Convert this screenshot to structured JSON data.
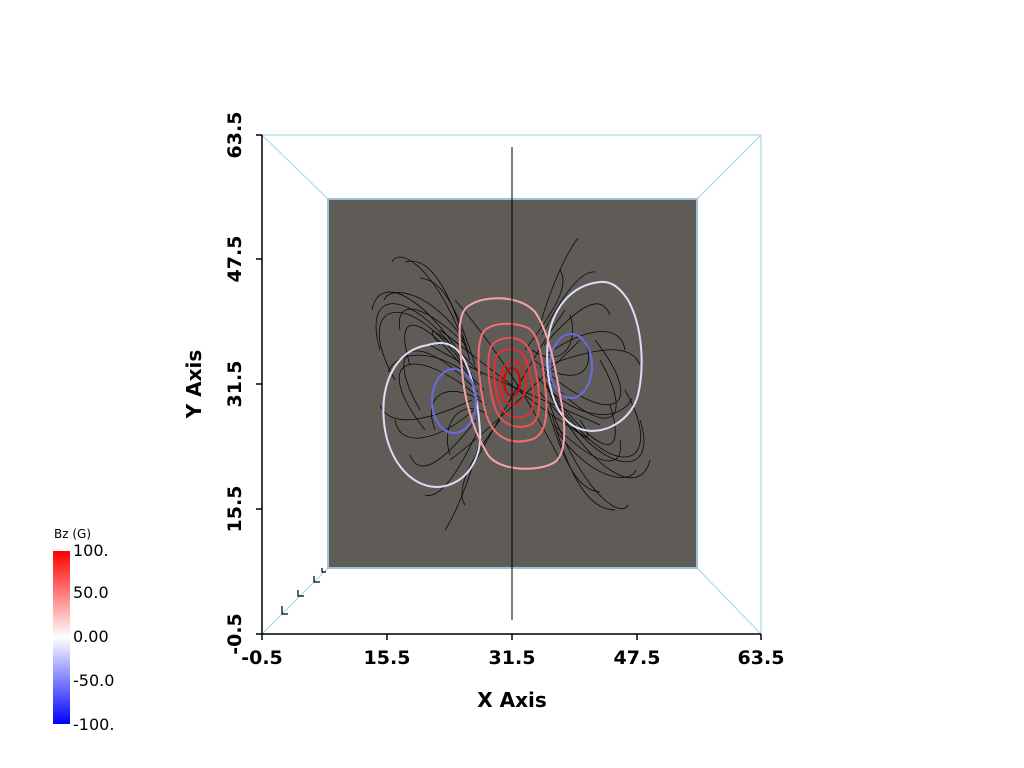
{
  "axes": {
    "x_title": "X Axis",
    "y_title": "Y Axis",
    "x_ticks": [
      "-0.5",
      "15.5",
      "31.5",
      "47.5",
      "63.5"
    ],
    "y_ticks": [
      "-0.5",
      "15.5",
      "31.5",
      "47.5",
      "63.5"
    ]
  },
  "colorbar": {
    "title": "Bz (G)",
    "labels": [
      "100.",
      "50.0",
      "0.00",
      "-50.0",
      "-100."
    ],
    "colors": {
      "max": "#ff0000",
      "mid": "#ffffff",
      "min": "#0000ff"
    }
  },
  "scene": {
    "slice_color": "#5f5c58",
    "box_color": "#add8e6",
    "fieldline_color": "#000000",
    "contours": [
      {
        "value": 100,
        "color": "#e00000"
      },
      {
        "value": 80,
        "color": "#e83030"
      },
      {
        "value": 60,
        "color": "#ee5050"
      },
      {
        "value": 40,
        "color": "#f07070"
      },
      {
        "value": 20,
        "color": "#f5a5a5"
      },
      {
        "value": -20,
        "color": "#dcdcf5"
      },
      {
        "value": -40,
        "color": "#6a6ae0"
      }
    ]
  }
}
